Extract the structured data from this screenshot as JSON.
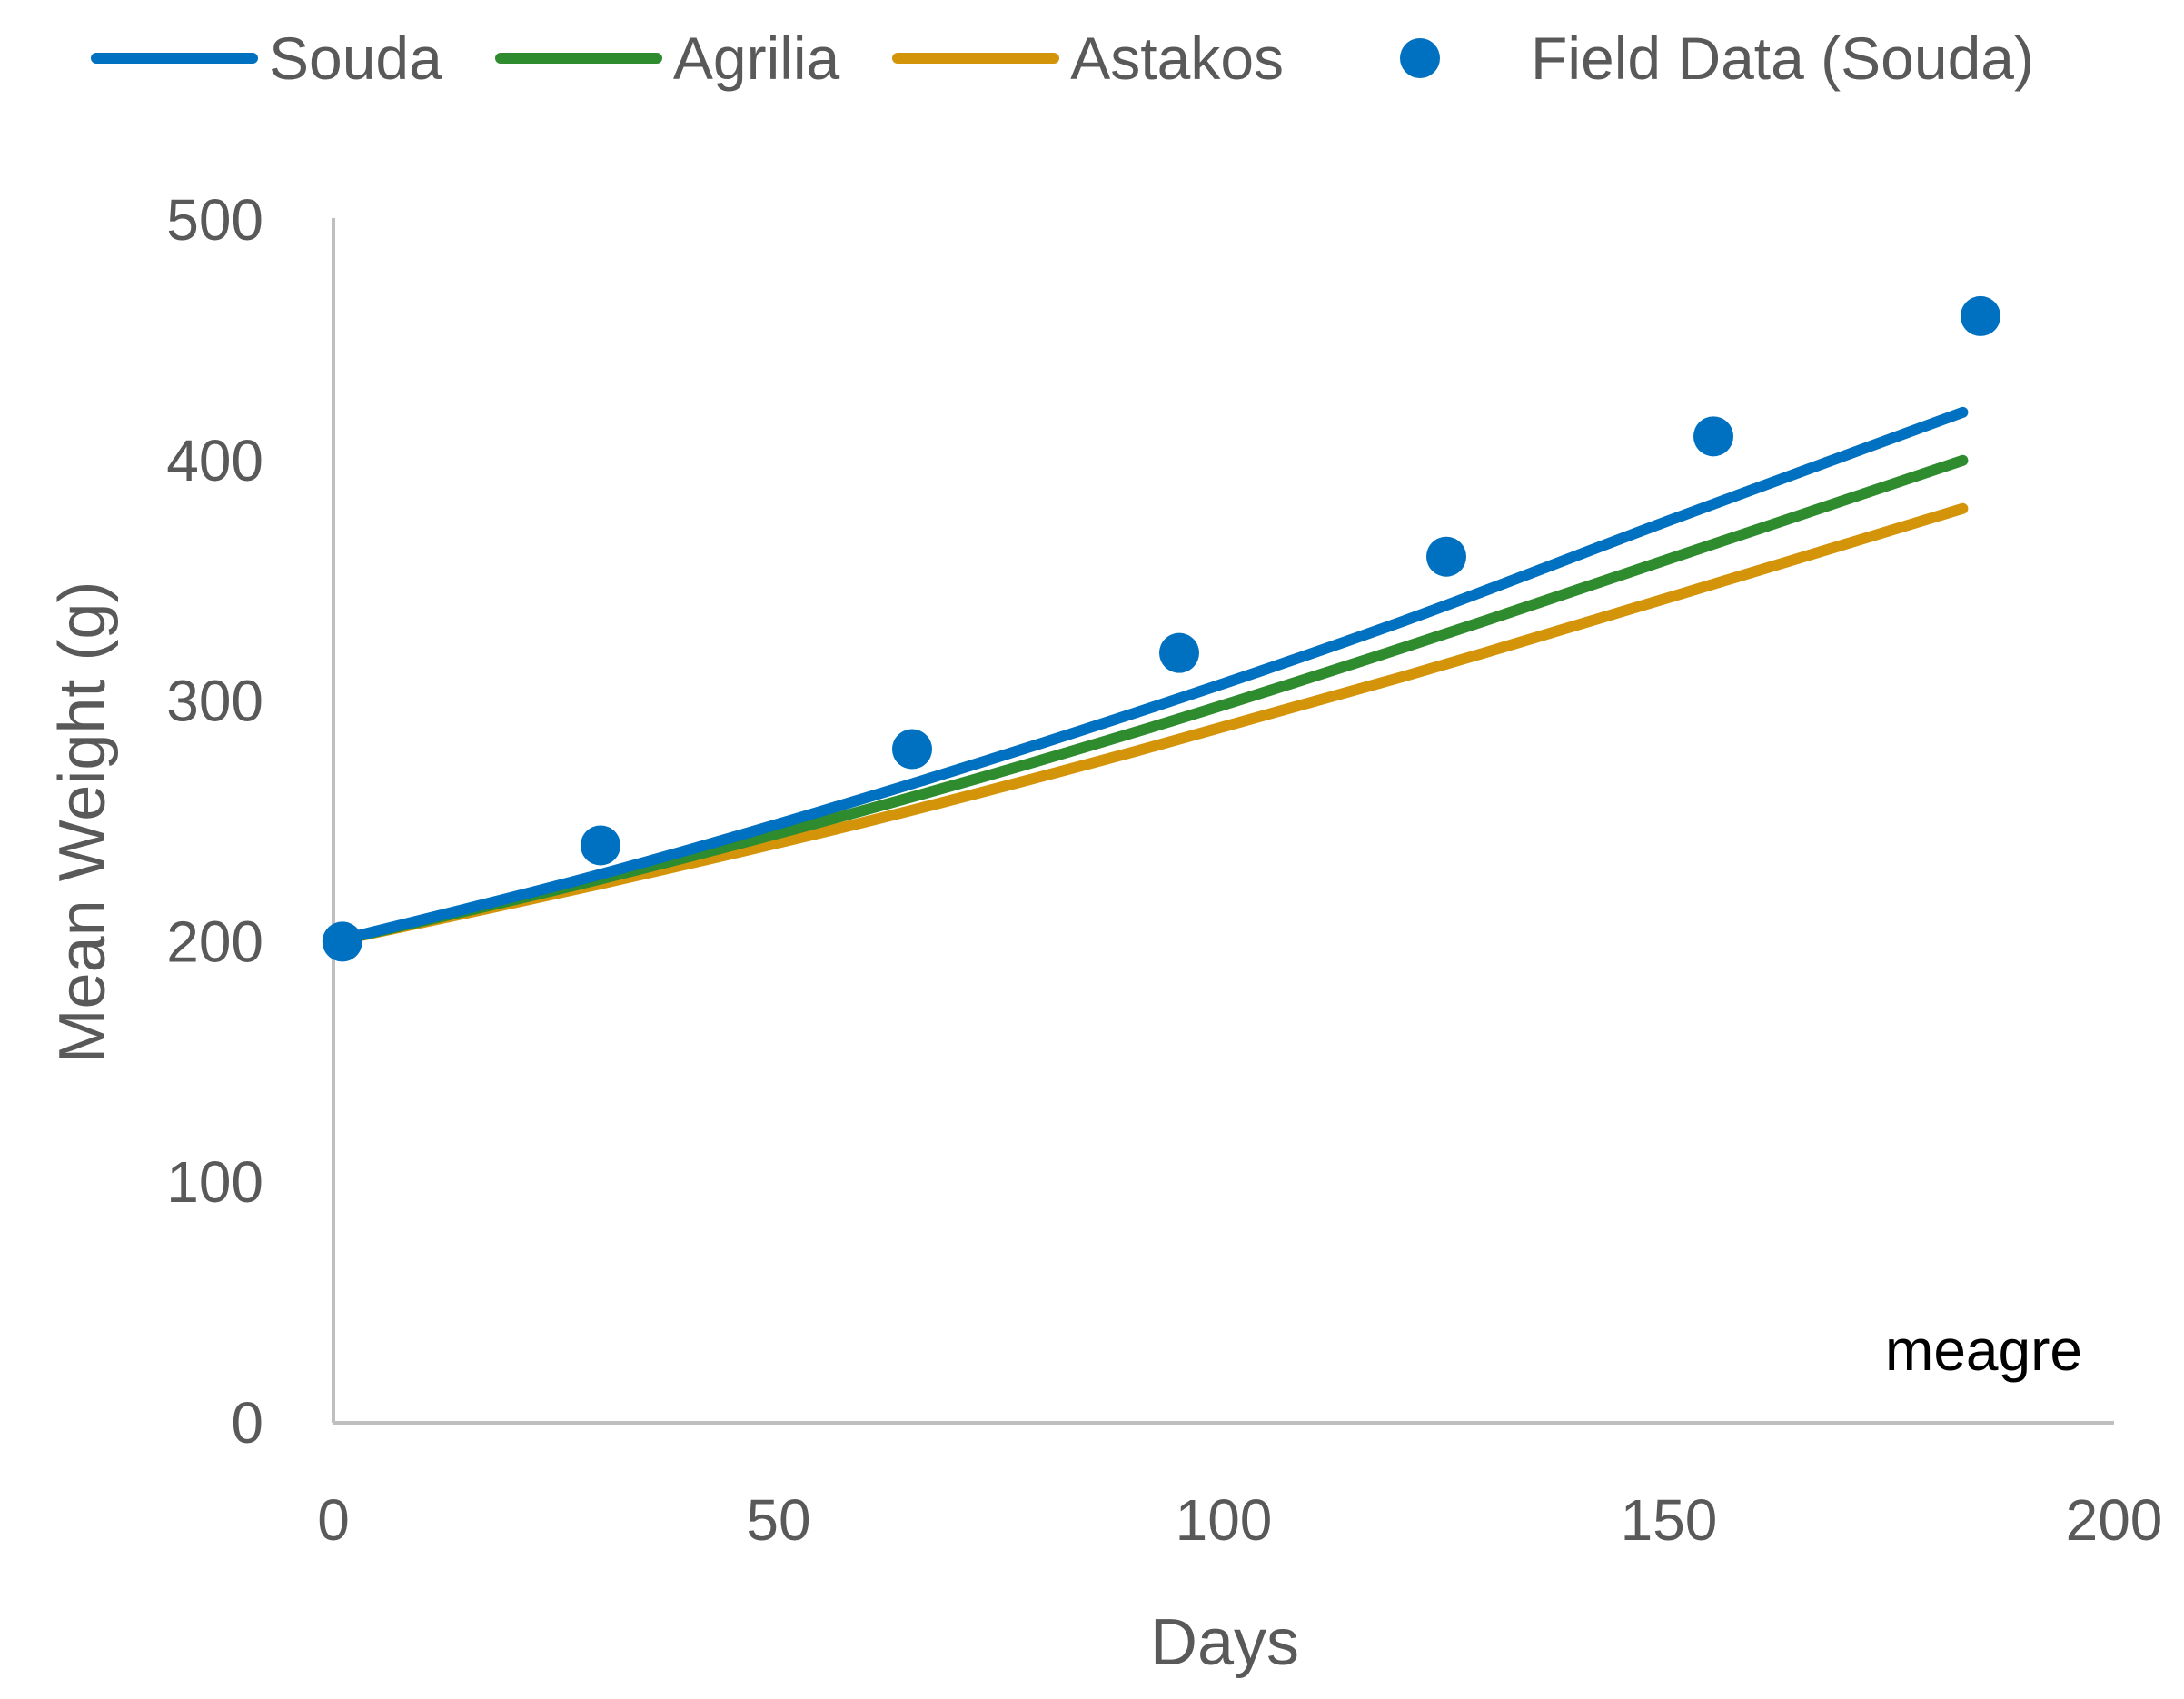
{
  "legend": [
    {
      "label": "Souda",
      "color": "#0070C0",
      "type": "line"
    },
    {
      "label": "Agrilia",
      "color": "#2E8B2E",
      "type": "line"
    },
    {
      "label": "Astakos",
      "color": "#D4940A",
      "type": "line"
    },
    {
      "label": "Field Data (Souda)",
      "color": "#0070C0",
      "type": "marker"
    }
  ],
  "axes": {
    "x_title": "Days",
    "y_title": "Mean Weight (g)",
    "x_ticks": [
      "0",
      "50",
      "100",
      "150",
      "200"
    ],
    "y_ticks": [
      "0",
      "100",
      "200",
      "300",
      "400",
      "500"
    ]
  },
  "annotation": "meagre",
  "chart_data": {
    "type": "line",
    "title": "",
    "xlabel": "Days",
    "ylabel": "Mean Weight (g)",
    "xlim": [
      0,
      200
    ],
    "ylim": [
      0,
      500
    ],
    "grid": false,
    "legend_position": "top",
    "annotations": [
      "meagre"
    ],
    "series": [
      {
        "name": "Souda",
        "type": "line",
        "color": "#0070C0",
        "x": [
          0,
          30,
          60,
          90,
          120,
          150,
          183
        ],
        "y": [
          200,
          228,
          260,
          295,
          333,
          375,
          420
        ]
      },
      {
        "name": "Agrilia",
        "type": "line",
        "color": "#2E8B2E",
        "x": [
          0,
          30,
          60,
          90,
          120,
          150,
          183
        ],
        "y": [
          200,
          226,
          255,
          287,
          322,
          359,
          400
        ]
      },
      {
        "name": "Astakos",
        "type": "line",
        "color": "#D4940A",
        "x": [
          0,
          30,
          60,
          90,
          120,
          150,
          183
        ],
        "y": [
          200,
          224,
          250,
          279,
          310,
          343,
          380
        ]
      },
      {
        "name": "Field Data (Souda)",
        "type": "scatter",
        "color": "#0070C0",
        "x": [
          1,
          30,
          65,
          95,
          125,
          155,
          185
        ],
        "y": [
          200,
          240,
          280,
          320,
          360,
          410,
          460
        ]
      }
    ]
  }
}
